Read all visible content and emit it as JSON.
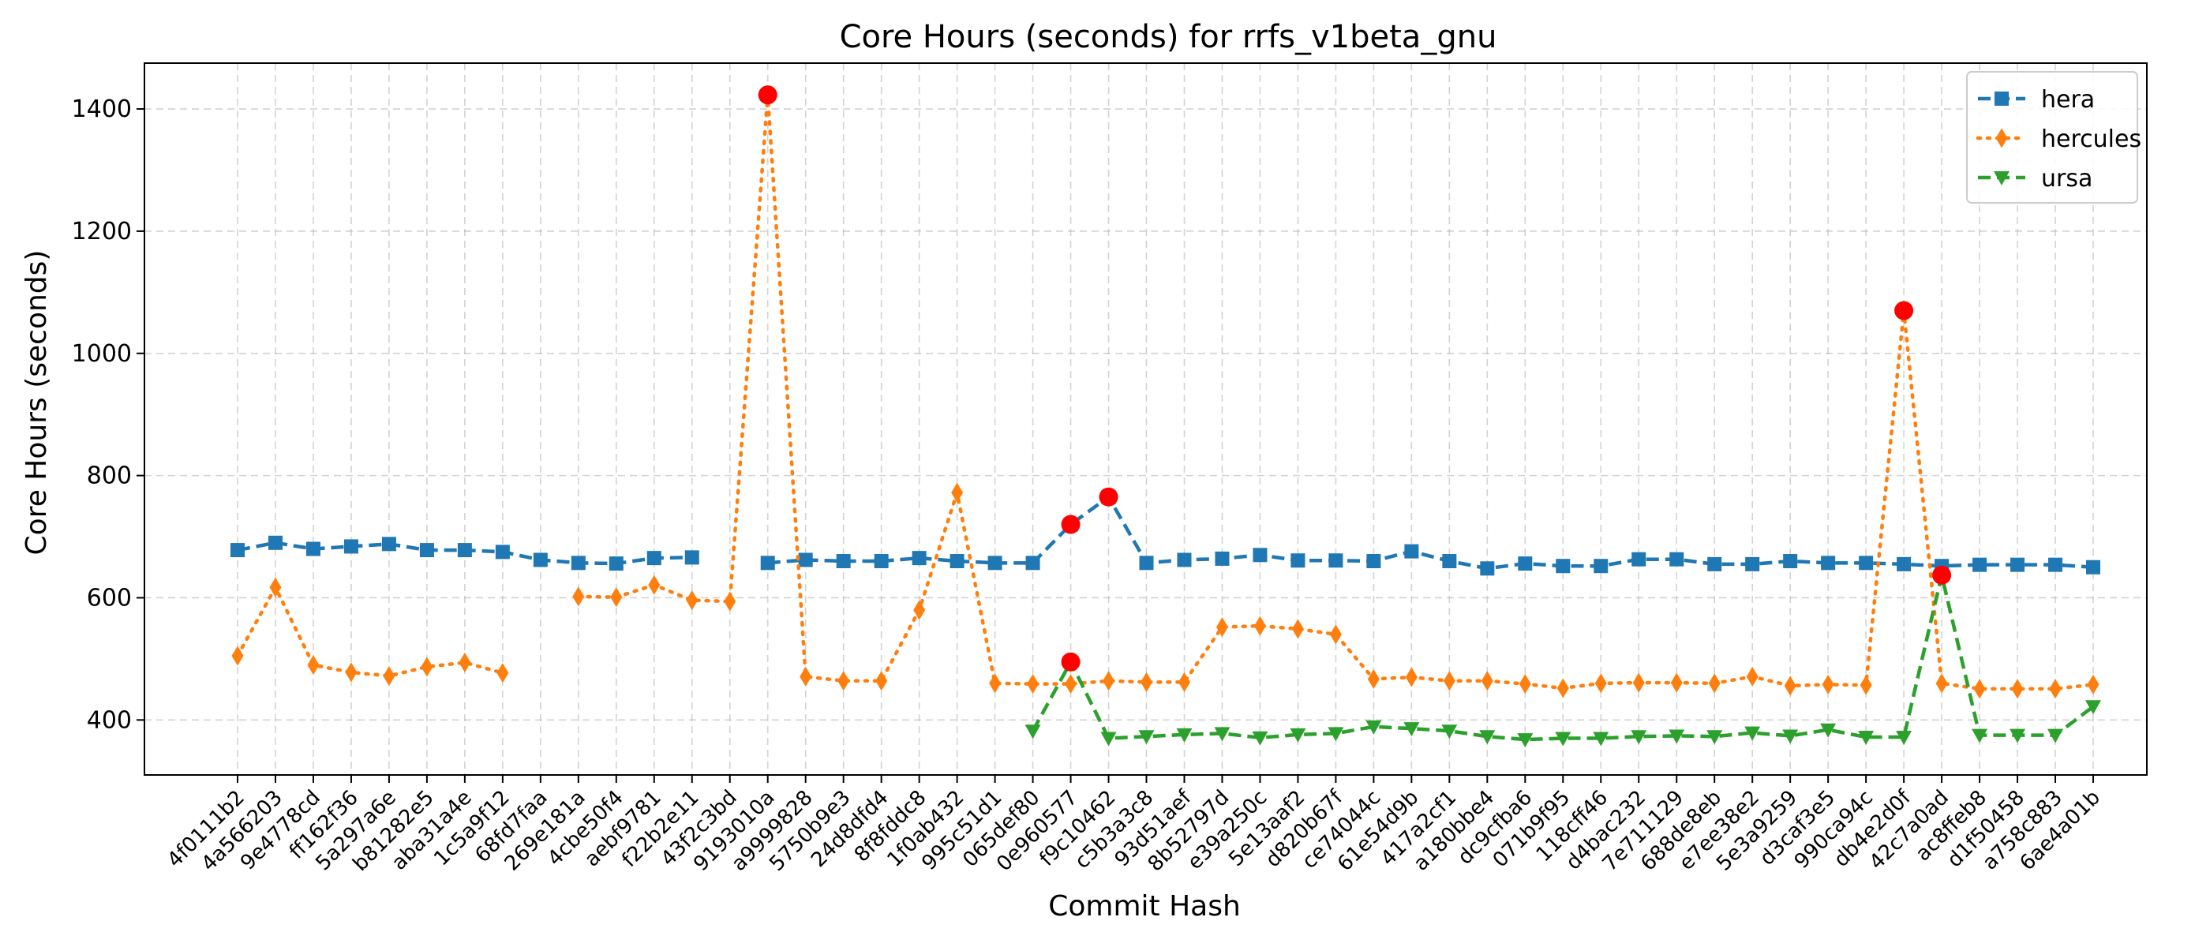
{
  "chart_data": {
    "type": "line",
    "title": "Core Hours (seconds) for rrfs_v1beta_gnu",
    "xlabel": "Commit Hash",
    "ylabel": "Core Hours (seconds)",
    "ylim": [
      310,
      1475
    ],
    "yticks": [
      400,
      600,
      800,
      1000,
      1200,
      1400
    ],
    "grid": true,
    "legend_position": "top-right",
    "categories": [
      "4f0111b2",
      "4a566203",
      "9e4778cd",
      "ff162f36",
      "5a297a6e",
      "b81282e5",
      "aba31a4e",
      "1c5a9f12",
      "68fd7faa",
      "269e181a",
      "4cbe50f4",
      "aebf9781",
      "f22b2e11",
      "43f2c3bd",
      "9193010a",
      "a9999828",
      "5750b9e3",
      "24d8dfd4",
      "8f8fddc8",
      "1f0ab432",
      "995c51d1",
      "065def80",
      "0e960577",
      "f9c10462",
      "c5b3a3c8",
      "93d51aef",
      "8b52797d",
      "e39a250c",
      "5e13aaf2",
      "d820b67f",
      "ce74044c",
      "61e54d9b",
      "417a2cf1",
      "a180bbe4",
      "dc9cfba6",
      "071b9f95",
      "118cff46",
      "d4bac232",
      "7e711129",
      "688de8eb",
      "e7ee38e2",
      "5e3a9259",
      "d3caf3e5",
      "990ca94c",
      "db4e2d0f",
      "42c7a0ad",
      "ac8ffeb8",
      "d1f50458",
      "a758c883",
      "6ae4a01b"
    ],
    "series": [
      {
        "name": "hera",
        "color": "#1f77b4",
        "marker": "square",
        "line_style": "dashed",
        "values": [
          678,
          690,
          680,
          684,
          688,
          678,
          678,
          675,
          662,
          657,
          656,
          665,
          666,
          null,
          657,
          662,
          660,
          660,
          665,
          660,
          657,
          657,
          720,
          765,
          657,
          662,
          664,
          670,
          661,
          661,
          660,
          676,
          660,
          648,
          656,
          652,
          652,
          663,
          663,
          655,
          655,
          660,
          657,
          657,
          655,
          652,
          654,
          654,
          654,
          650
        ]
      },
      {
        "name": "hercules",
        "color": "#ff7f0e",
        "marker": "diamond",
        "line_style": "dotted",
        "values": [
          505,
          617,
          490,
          478,
          472,
          487,
          494,
          477,
          null,
          602,
          601,
          621,
          596,
          594,
          1423,
          471,
          464,
          464,
          580,
          772,
          460,
          459,
          459,
          464,
          462,
          462,
          552,
          554,
          549,
          540,
          467,
          470,
          464,
          464,
          459,
          452,
          460,
          461,
          461,
          460,
          471,
          456,
          458,
          457,
          1070,
          460,
          451,
          451,
          451,
          458
        ]
      },
      {
        "name": "ursa",
        "color": "#2ca02c",
        "marker": "triangle-down",
        "line_style": "dashed",
        "values": [
          null,
          null,
          null,
          null,
          null,
          null,
          null,
          null,
          null,
          null,
          null,
          null,
          null,
          null,
          null,
          null,
          null,
          null,
          null,
          null,
          null,
          382,
          495,
          370,
          373,
          376,
          378,
          371,
          376,
          378,
          389,
          386,
          382,
          373,
          368,
          370,
          370,
          373,
          374,
          373,
          379,
          374,
          384,
          372,
          372,
          637,
          375,
          375,
          375,
          422
        ]
      }
    ],
    "highlighted_points": [
      {
        "series": "hera",
        "category": "0e960577",
        "value": 720
      },
      {
        "series": "hera",
        "category": "f9c10462",
        "value": 765
      },
      {
        "series": "hercules",
        "category": "9193010a",
        "value": 1423
      },
      {
        "series": "hercules",
        "category": "db4e2d0f",
        "value": 1070
      },
      {
        "series": "ursa",
        "category": "0e960577",
        "value": 495
      },
      {
        "series": "ursa",
        "category": "42c7a0ad",
        "value": 637
      }
    ],
    "highlight_color": "#ff0000"
  }
}
